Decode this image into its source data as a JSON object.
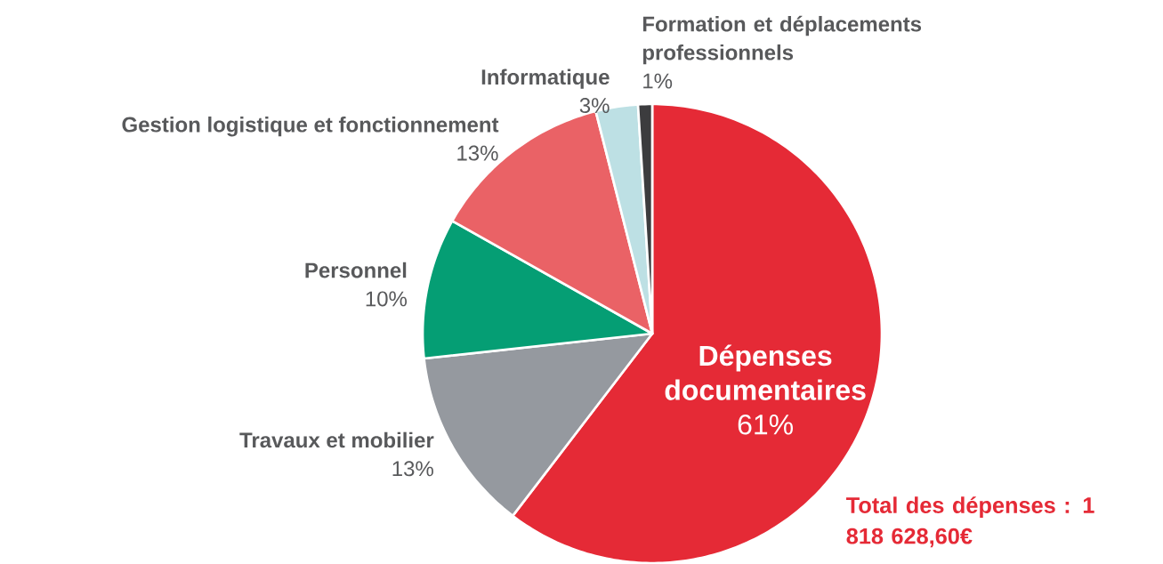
{
  "chart_data": {
    "type": "pie",
    "categories": [
      "Dépenses documentaires",
      "Travaux et mobilier",
      "Personnel",
      "Gestion logistique et fonctionnement",
      "Informatique",
      "Formation et déplacements professionnels"
    ],
    "values": [
      61,
      13,
      10,
      13,
      3,
      1
    ],
    "colors": [
      "#e52a36",
      "#95999f",
      "#059e74",
      "#ea6266",
      "#bde0e4",
      "#3c3c3e"
    ],
    "value_labels": [
      "61%",
      "13%",
      "10%",
      "13%",
      "3%",
      "1%"
    ],
    "annotations": [
      "Total des dépenses : 1 818 628,60€"
    ]
  }
}
